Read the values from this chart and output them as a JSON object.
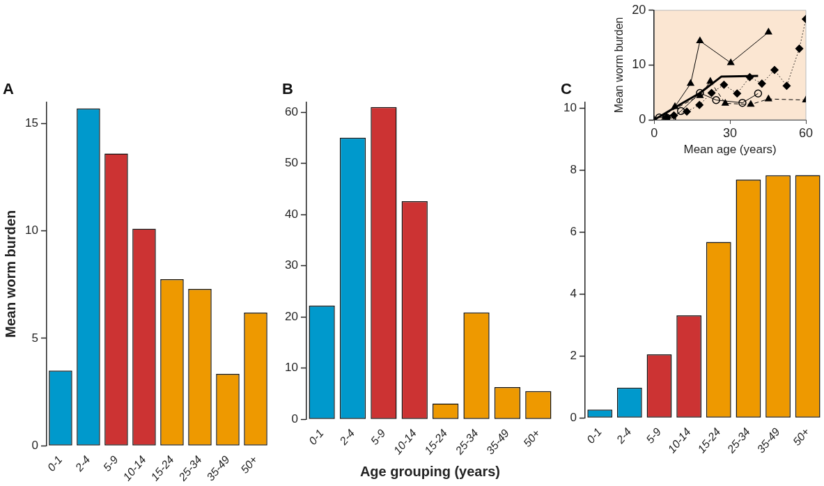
{
  "chart_data": [
    {
      "type": "bar",
      "title": "A",
      "ylabel": "Mean worm burden",
      "categories": [
        "0-1",
        "2-4",
        "5-9",
        "10-14",
        "15-24",
        "25-34",
        "35-49",
        "50+"
      ],
      "values": [
        3.5,
        15.7,
        13.6,
        10.1,
        7.75,
        7.3,
        3.35,
        6.2
      ],
      "colors": [
        "#0099cc",
        "#0099cc",
        "#cc3333",
        "#cc3333",
        "#ee9900",
        "#ee9900",
        "#ee9900",
        "#ee9900"
      ],
      "ylim": [
        0,
        16
      ],
      "yticks": [
        0,
        5,
        10,
        15
      ],
      "grid": false,
      "legend": false
    },
    {
      "type": "bar",
      "title": "B",
      "xlabel": "Age grouping (years)",
      "categories": [
        "0-1",
        "2-4",
        "5-9",
        "10-14",
        "15-24",
        "25-34",
        "35-49",
        "50+"
      ],
      "values": [
        22.2,
        55,
        61,
        42.6,
        3.1,
        20.9,
        6.3,
        5.5
      ],
      "colors": [
        "#0099cc",
        "#0099cc",
        "#cc3333",
        "#cc3333",
        "#ee9900",
        "#ee9900",
        "#ee9900",
        "#ee9900"
      ],
      "ylim": [
        0,
        62
      ],
      "yticks": [
        0,
        10,
        20,
        30,
        40,
        50,
        60
      ],
      "grid": false,
      "legend": false
    },
    {
      "type": "bar",
      "title": "C",
      "categories": [
        "0-1",
        "2-4",
        "5-9",
        "10-14",
        "15-24",
        "25-34",
        "35-49",
        "50+"
      ],
      "values": [
        0.27,
        0.98,
        2.05,
        3.31,
        5.68,
        7.69,
        7.83,
        7.84
      ],
      "colors": [
        "#0099cc",
        "#0099cc",
        "#cc3333",
        "#cc3333",
        "#ee9900",
        "#ee9900",
        "#ee9900",
        "#ee9900"
      ],
      "ylim": [
        0,
        10.2
      ],
      "yticks": [
        0,
        2,
        4,
        6,
        8,
        10
      ],
      "grid": false,
      "legend": false
    },
    {
      "type": "line",
      "xlabel": "Mean age (years)",
      "ylabel": "Mean worm burden",
      "xlim": [
        0,
        60
      ],
      "xticks": [
        0,
        30,
        60
      ],
      "ylim": [
        0,
        20
      ],
      "yticks": [
        0,
        10,
        20
      ],
      "grid": false,
      "legend": false,
      "series": [
        {
          "color": "#000000",
          "marker": "triangle",
          "line_style": "solid",
          "x": [
            8.2,
            14.4,
            18.1,
            30.3,
            45.2
          ],
          "values": [
            2.4,
            6.6,
            14.4,
            10.4,
            16
          ]
        },
        {
          "color": "#000000",
          "marker": "diamond",
          "line_style": "dotted",
          "x": [
            4.9,
            7.8,
            12.9,
            17.9,
            22.7,
            27.6,
            32.8,
            37.8,
            42.6,
            47.6,
            52.4,
            57.4,
            60
          ],
          "values": [
            0.4,
            0.8,
            1.5,
            2.7,
            4.9,
            6.4,
            4.8,
            7.8,
            6.6,
            9.1,
            6.2,
            13,
            18.4
          ]
        },
        {
          "color": "#000000",
          "marker": "none",
          "line_style": "solid",
          "x": [
            0,
            8,
            18.1,
            26.6,
            41.1
          ],
          "values": [
            0,
            2.2,
            4.9,
            7.9,
            8
          ]
        },
        {
          "color": "#000000",
          "marker": "circle",
          "line_style": "solid",
          "x": [
            2,
            4.9,
            7.1,
            10.6,
            18.1,
            24.5,
            34.9,
            41.1
          ],
          "values": [
            0.4,
            0.4,
            0.3,
            1.6,
            4.9,
            3.6,
            3.1,
            4.8
          ]
        },
        {
          "color": "#000000",
          "marker": "triangle",
          "line_style": "dashed",
          "x": [
            0,
            18.1,
            22.2,
            28.1,
            38.2,
            45.2,
            60
          ],
          "values": [
            0,
            4.4,
            7,
            3,
            2.8,
            3.8,
            3.6
          ]
        }
      ]
    }
  ]
}
